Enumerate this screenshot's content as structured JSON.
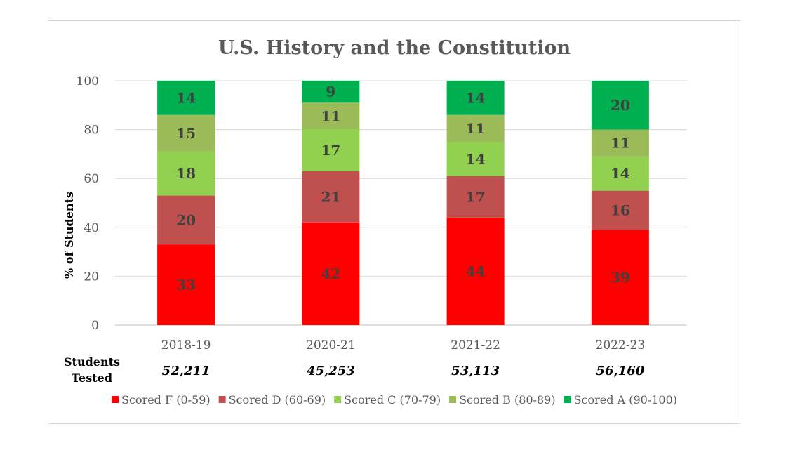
{
  "chart_data": {
    "type": "bar",
    "stacked": true,
    "title": "U.S. History and the Constitution",
    "ylabel": "% of Students",
    "xlabel": "",
    "ylim": [
      0,
      100
    ],
    "yticks": [
      0,
      20,
      40,
      60,
      80,
      100
    ],
    "grid": true,
    "legend_position": "bottom",
    "categories": [
      "2018-19",
      "2020-21",
      "2021-22",
      "2022-23"
    ],
    "series": [
      {
        "name": "Scored F (0-59)",
        "color": "#ff0000",
        "values": [
          33,
          42,
          44,
          39
        ]
      },
      {
        "name": "Scored D (60-69)",
        "color": "#c0504d",
        "values": [
          20,
          21,
          17,
          16
        ]
      },
      {
        "name": "Scored C (70-79)",
        "color": "#92d050",
        "values": [
          18,
          17,
          14,
          14
        ]
      },
      {
        "name": "Scored B (80-89)",
        "color": "#9bbb59",
        "values": [
          15,
          11,
          11,
          11
        ]
      },
      {
        "name": "Scored A (90-100)",
        "color": "#00b050",
        "values": [
          14,
          9,
          14,
          20
        ]
      }
    ],
    "students_tested": {
      "label_line1": "Students",
      "label_line2": "Tested",
      "values": [
        "52,211",
        "45,253",
        "53,113",
        "56,160"
      ]
    }
  }
}
